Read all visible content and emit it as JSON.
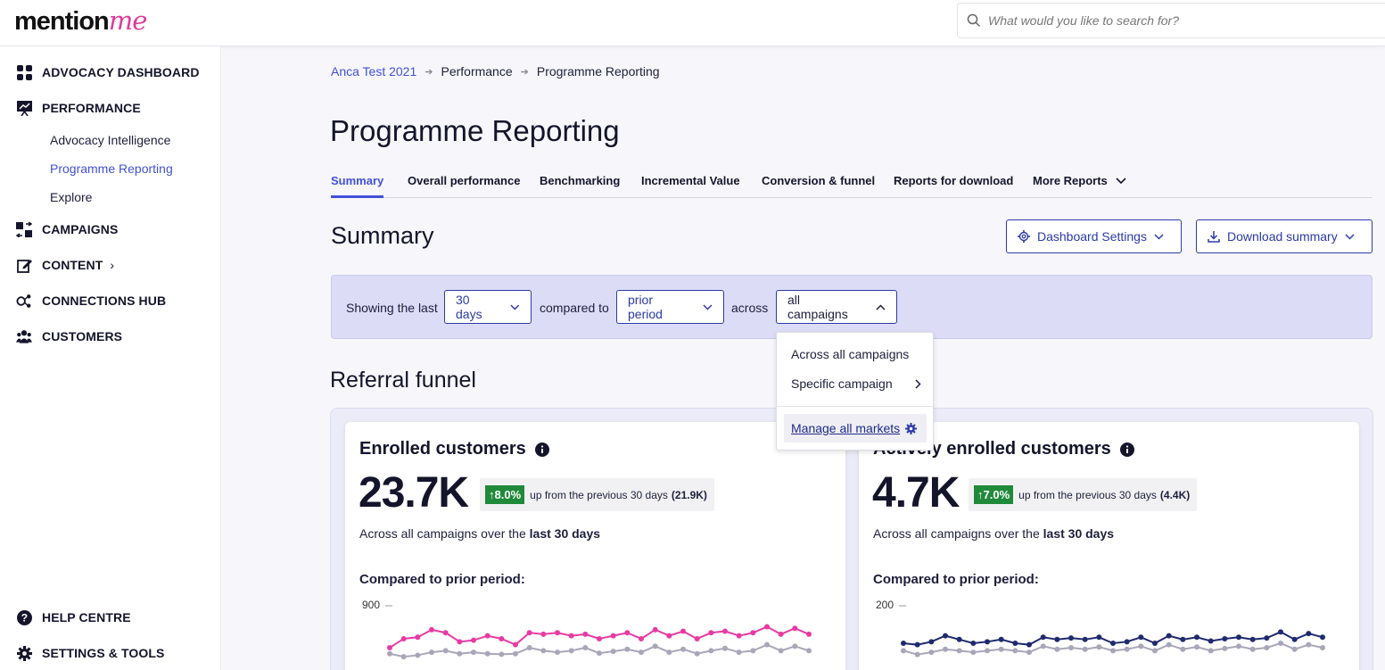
{
  "logo": {
    "part1": "mention",
    "part2": "me"
  },
  "search": {
    "placeholder": "What would you like to search for?"
  },
  "sidebar": {
    "advocacy_dashboard": "ADVOCACY DASHBOARD",
    "performance": "PERFORMANCE",
    "sub_items": [
      "Advocacy Intelligence",
      "Programme Reporting",
      "Explore"
    ],
    "campaigns": "CAMPAIGNS",
    "content": "CONTENT",
    "connections_hub": "CONNECTIONS HUB",
    "customers": "CUSTOMERS",
    "help_centre": "HELP CENTRE",
    "settings_tools": "SETTINGS & TOOLS"
  },
  "breadcrumb": [
    "Anca Test 2021",
    "Performance",
    "Programme Reporting"
  ],
  "page_title": "Programme Reporting",
  "tabs": [
    "Summary",
    "Overall performance",
    "Benchmarking",
    "Incremental Value",
    "Conversion & funnel",
    "Reports for download",
    "More Reports"
  ],
  "summary": {
    "title": "Summary",
    "dashboard_settings": "Dashboard Settings",
    "download_summary": "Download summary"
  },
  "filters": {
    "showing_the_last": "Showing the last",
    "period": "30 days",
    "compared_to": "compared to",
    "comparison": "prior period",
    "across": "across",
    "scope": "all campaigns"
  },
  "dropdown": {
    "across_all": "Across all campaigns",
    "specific": "Specific campaign",
    "manage": "Manage all markets"
  },
  "funnel": {
    "title": "Referral funnel",
    "cards": [
      {
        "title": "Enrolled customers",
        "value": "23.7K",
        "pct": "8.0%",
        "delta_text": "up from the previous 30 days",
        "prev": "(21.9K)",
        "sub_prefix": "Across all campaigns over the",
        "sub_bold": "last 30 days",
        "compared": "Compared to prior period:",
        "ytick": "900"
      },
      {
        "title": "Actively enrolled customers",
        "value": "4.7K",
        "pct": "7.0%",
        "delta_text": "up from the previous 30 days",
        "prev": "(4.4K)",
        "sub_prefix": "Across all campaigns over the",
        "sub_bold": "last 30 days",
        "compared": "Compared to prior period:",
        "ytick": "200"
      }
    ]
  },
  "colors": {
    "accent": "#4250d8",
    "current_series_card1": "#e83aa3",
    "current_series_card2": "#1e2a6e",
    "prior_series": "#a9a6b8",
    "positive": "#1f8a3a"
  },
  "chart_data": [
    {
      "type": "line",
      "series": [
        {
          "values": [
            760,
            790,
            795,
            820,
            810,
            780,
            785,
            800,
            790,
            770,
            810,
            805,
            810,
            800,
            805,
            790,
            800,
            810,
            790,
            820,
            800,
            815,
            790,
            810,
            815,
            800,
            810,
            830,
            805,
            825,
            805
          ]
        },
        {
          "values": [
            740,
            730,
            735,
            745,
            750,
            740,
            745,
            740,
            738,
            740,
            760,
            750,
            745,
            750,
            760,
            742,
            748,
            755,
            745,
            765,
            745,
            755,
            740,
            750,
            758,
            745,
            750,
            770,
            750,
            765,
            750
          ]
        }
      ],
      "ylabel_ticks": [
        "900"
      ]
    },
    {
      "type": "line",
      "series": [
        {
          "values": [
            150,
            148,
            152,
            160,
            155,
            150,
            152,
            155,
            150,
            148,
            158,
            155,
            157,
            155,
            158,
            150,
            152,
            158,
            150,
            160,
            155,
            158,
            153,
            156,
            158,
            155,
            157,
            165,
            155,
            163,
            158
          ]
        },
        {
          "values": [
            140,
            135,
            138,
            142,
            140,
            138,
            140,
            142,
            140,
            138,
            146,
            142,
            144,
            142,
            145,
            140,
            142,
            146,
            140,
            148,
            142,
            145,
            140,
            143,
            146,
            142,
            144,
            150,
            142,
            148,
            144
          ]
        }
      ],
      "ylabel_ticks": [
        "200"
      ]
    }
  ]
}
